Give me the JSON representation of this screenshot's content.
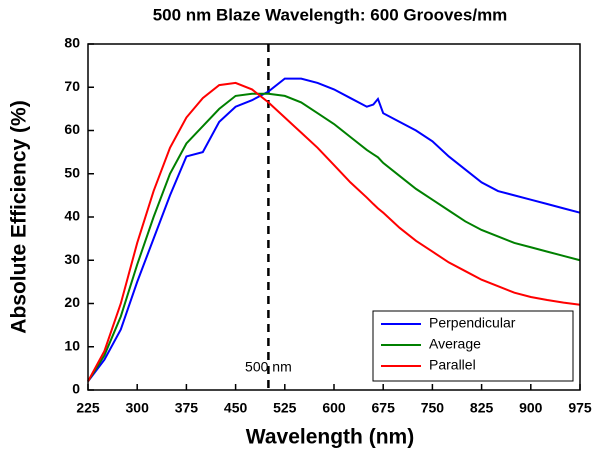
{
  "chart_data": {
    "type": "line",
    "title": "500 nm Blaze Wavelength: 600 Grooves/mm",
    "x_label": "Wavelength (nm)",
    "y_label": "Absolute Efficiency (%)",
    "x": [
      225,
      250,
      275,
      300,
      325,
      350,
      375,
      400,
      425,
      450,
      475,
      500,
      525,
      550,
      575,
      600,
      625,
      650,
      660,
      667,
      675,
      700,
      725,
      750,
      775,
      800,
      825,
      850,
      875,
      900,
      925,
      950,
      975
    ],
    "series": [
      {
        "name": "Perpendicular",
        "color": "#0000ff",
        "values": [
          2,
          7,
          14,
          25,
          35,
          45,
          54,
          55,
          62,
          65.5,
          67,
          69,
          72,
          72,
          71,
          69.5,
          67.5,
          65.5,
          66,
          67.3,
          64,
          62,
          60,
          57.5,
          54,
          51,
          48,
          46,
          45,
          44,
          43,
          42,
          41
        ]
      },
      {
        "name": "Average",
        "color": "#008000",
        "values": [
          2,
          8,
          17,
          29,
          40,
          50,
          57,
          61,
          65,
          68,
          68.5,
          68.5,
          68,
          66.5,
          64,
          61.5,
          58.5,
          55.5,
          54.5,
          53.8,
          52.5,
          49.5,
          46.5,
          44,
          41.5,
          39,
          37,
          35.5,
          34,
          33,
          32,
          31,
          30
        ]
      },
      {
        "name": "Parallel",
        "color": "#ff0000",
        "values": [
          2,
          9,
          20,
          34,
          46,
          56,
          63,
          67.5,
          70.5,
          71,
          69.5,
          66.5,
          63,
          59.5,
          56,
          52,
          48,
          44.5,
          43,
          42,
          41,
          37.5,
          34.5,
          32,
          29.5,
          27.5,
          25.5,
          24,
          22.5,
          21.5,
          20.8,
          20.2,
          19.7
        ]
      }
    ],
    "xlim": [
      225,
      975
    ],
    "xticks": [
      225,
      300,
      375,
      450,
      525,
      600,
      675,
      750,
      825,
      900,
      975
    ],
    "ylim": [
      0,
      80
    ],
    "yticks": [
      0,
      10,
      20,
      30,
      40,
      50,
      60,
      70,
      80
    ],
    "vline": {
      "x": 500,
      "label": "500 nm"
    },
    "legend": "lower right"
  }
}
